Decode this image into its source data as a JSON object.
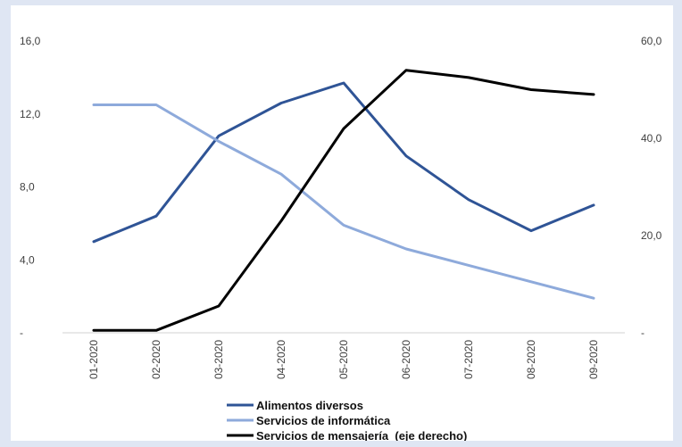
{
  "chart_data": {
    "type": "line",
    "title": "",
    "categories": [
      "01-2020",
      "02-2020",
      "03-2020",
      "04-2020",
      "05-2020",
      "06-2020",
      "07-2020",
      "08-2020",
      "09-2020"
    ],
    "y_left": {
      "ylim": [
        0,
        16
      ],
      "ticks": [
        0,
        4,
        8,
        12,
        16
      ],
      "tick_labels": [
        "-",
        "4,0",
        "8,0",
        "12,0",
        "16,0"
      ]
    },
    "y_right": {
      "ylim": [
        0,
        60
      ],
      "ticks": [
        0,
        20,
        40,
        60
      ],
      "tick_labels": [
        "-",
        "20,0",
        "40,0",
        "60,0"
      ]
    },
    "series": [
      {
        "name": "Alimentos diversos",
        "axis": "left",
        "color": "#2f5496",
        "values": [
          5.0,
          6.4,
          10.8,
          12.6,
          13.7,
          9.7,
          7.3,
          5.6,
          7.0
        ]
      },
      {
        "name": "Servicios de informática",
        "axis": "left",
        "color": "#8eaadb",
        "values": [
          12.5,
          12.5,
          10.5,
          8.7,
          5.9,
          4.6,
          3.7,
          2.8,
          1.9
        ]
      },
      {
        "name": "Servicios de mensajería  (eje derecho)",
        "axis": "right",
        "color": "#000000",
        "values": [
          0.5,
          0.5,
          5.5,
          23.0,
          42.0,
          54.0,
          52.5,
          50.0,
          49.0
        ]
      }
    ],
    "legend_position": "bottom",
    "grid": false
  }
}
